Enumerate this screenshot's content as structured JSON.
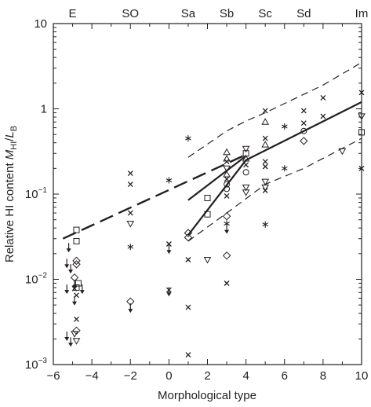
{
  "chart_data": {
    "type": "scatter",
    "xlabel": "Morphological type",
    "ylabel": "Relative HI content M_HI/L_B",
    "ylabel_parts": {
      "main": "Relative HI content ",
      "var": "M",
      "sub1": "HI",
      "sep": "/",
      "var2": "L",
      "sub2": "B"
    },
    "x_range": [
      -6,
      10
    ],
    "y_range": [
      0.001,
      10
    ],
    "y_scale": "log",
    "x_ticks": [
      -6,
      -4,
      -2,
      0,
      2,
      4,
      6,
      8,
      10
    ],
    "x_tick_labels": [
      "−6",
      "−4",
      "−2",
      "0",
      "2",
      "4",
      "6",
      "8",
      "10"
    ],
    "y_ticks": [
      10,
      1,
      0.1,
      0.01,
      0.001
    ],
    "y_tick_labels": [
      {
        "base": "10",
        "exp": ""
      },
      {
        "base": "1",
        "exp": ""
      },
      {
        "base": "10",
        "exp": "−1"
      },
      {
        "base": "10",
        "exp": "−2"
      },
      {
        "base": "10",
        "exp": "−3"
      }
    ],
    "top_types": [
      {
        "label": "E",
        "x": -5
      },
      {
        "label": "SO",
        "x": -2
      },
      {
        "label": "Sa",
        "x": 1
      },
      {
        "label": "Sb",
        "x": 3
      },
      {
        "label": "Sc",
        "x": 5
      },
      {
        "label": "Sd",
        "x": 7
      },
      {
        "label": "Im",
        "x": 10
      }
    ],
    "lines": [
      {
        "style": "solid",
        "points": [
          [
            1,
            0.085
          ],
          [
            4,
            0.28
          ]
        ]
      },
      {
        "style": "solid",
        "points": [
          [
            1,
            0.033
          ],
          [
            4,
            0.25
          ],
          [
            10,
            1.2
          ]
        ]
      },
      {
        "style": "long-dash",
        "points": [
          [
            -5.5,
            0.03
          ],
          [
            4,
            0.29
          ]
        ]
      },
      {
        "style": "short-dash",
        "points": [
          [
            1,
            0.27
          ],
          [
            3,
            0.55
          ],
          [
            4,
            0.72
          ],
          [
            5,
            0.9
          ],
          [
            8,
            1.9
          ],
          [
            10,
            3.5
          ]
        ]
      },
      {
        "style": "short-dash",
        "points": [
          [
            1,
            0.028
          ],
          [
            3,
            0.06
          ],
          [
            5,
            0.13
          ],
          [
            7,
            0.2
          ],
          [
            10,
            0.45
          ]
        ]
      }
    ],
    "points": [
      {
        "x": -4.8,
        "y": 0.0034,
        "m": "x"
      },
      {
        "x": -4.8,
        "y": 0.0065,
        "m": "x"
      },
      {
        "x": -4.9,
        "y": 0.0078,
        "m": "x"
      },
      {
        "x": -4.8,
        "y": 0.038,
        "m": "s"
      },
      {
        "x": -4.8,
        "y": 0.028,
        "m": "s"
      },
      {
        "x": -4.8,
        "y": 0.008,
        "m": "s"
      },
      {
        "x": -4.7,
        "y": 0.009,
        "m": "s"
      },
      {
        "x": -4.8,
        "y": 0.0165,
        "m": "d"
      },
      {
        "x": -4.9,
        "y": 0.0105,
        "m": "d"
      },
      {
        "x": -4.8,
        "y": 0.0025,
        "m": "d"
      },
      {
        "x": -4.8,
        "y": 0.0019,
        "m": "v"
      },
      {
        "x": -4.9,
        "y": 0.0023,
        "m": "v"
      },
      {
        "x": -5.2,
        "y": 0.023,
        "m": "da"
      },
      {
        "x": -5.3,
        "y": 0.015,
        "m": "da"
      },
      {
        "x": -5.1,
        "y": 0.013,
        "m": "da"
      },
      {
        "x": -5.3,
        "y": 0.0075,
        "m": "da"
      },
      {
        "x": -4.9,
        "y": 0.0085,
        "m": "da"
      },
      {
        "x": -4.5,
        "y": 0.0075,
        "m": "da"
      },
      {
        "x": -4.9,
        "y": 0.0055,
        "m": "da"
      },
      {
        "x": -5.3,
        "y": 0.0021,
        "m": "da"
      },
      {
        "x": -5.1,
        "y": 0.0018,
        "m": "da"
      },
      {
        "x": -4.8,
        "y": 0.015,
        "m": "d"
      },
      {
        "x": -2,
        "y": 0.175,
        "m": "x"
      },
      {
        "x": -2,
        "y": 0.13,
        "m": "x"
      },
      {
        "x": -2,
        "y": 0.06,
        "m": "x"
      },
      {
        "x": -2,
        "y": 0.045,
        "m": "v"
      },
      {
        "x": -2,
        "y": 0.024,
        "m": "a"
      },
      {
        "x": -2,
        "y": 0.0055,
        "m": "d"
      },
      {
        "x": -2,
        "y": 0.0045,
        "m": "da"
      },
      {
        "x": 0,
        "y": 0.145,
        "m": "a"
      },
      {
        "x": 0,
        "y": 0.026,
        "m": "x"
      },
      {
        "x": 0,
        "y": 0.022,
        "m": "da"
      },
      {
        "x": 0,
        "y": 0.0075,
        "m": "x"
      },
      {
        "x": 0,
        "y": 0.007,
        "m": "da"
      },
      {
        "x": 1,
        "y": 0.45,
        "m": "a"
      },
      {
        "x": 1,
        "y": 0.035,
        "m": "d"
      },
      {
        "x": 1,
        "y": 0.031,
        "m": "d"
      },
      {
        "x": 1,
        "y": 0.017,
        "m": "x"
      },
      {
        "x": 1,
        "y": 0.0047,
        "m": "x"
      },
      {
        "x": 1,
        "y": 0.0013,
        "m": "x"
      },
      {
        "x": 2,
        "y": 0.09,
        "m": "s"
      },
      {
        "x": 2,
        "y": 0.058,
        "m": "s"
      },
      {
        "x": 2,
        "y": 0.017,
        "m": "v"
      },
      {
        "x": 3,
        "y": 0.31,
        "m": "t"
      },
      {
        "x": 3,
        "y": 0.26,
        "m": "t"
      },
      {
        "x": 3,
        "y": 0.24,
        "m": "x"
      },
      {
        "x": 3,
        "y": 0.2,
        "m": "v"
      },
      {
        "x": 3,
        "y": 0.17,
        "m": "t"
      },
      {
        "x": 3,
        "y": 0.15,
        "m": "x"
      },
      {
        "x": 3,
        "y": 0.13,
        "m": "o"
      },
      {
        "x": 3,
        "y": 0.115,
        "m": "o"
      },
      {
        "x": 3,
        "y": 0.095,
        "m": "x"
      },
      {
        "x": 3,
        "y": 0.055,
        "m": "d"
      },
      {
        "x": 3,
        "y": 0.045,
        "m": "a"
      },
      {
        "x": 3,
        "y": 0.038,
        "m": "da"
      },
      {
        "x": 3,
        "y": 0.019,
        "m": "d"
      },
      {
        "x": 3,
        "y": 0.009,
        "m": "x"
      },
      {
        "x": 4,
        "y": 0.34,
        "m": "v"
      },
      {
        "x": 4,
        "y": 0.3,
        "m": "s"
      },
      {
        "x": 4,
        "y": 0.26,
        "m": "t"
      },
      {
        "x": 4,
        "y": 0.22,
        "m": "x"
      },
      {
        "x": 4,
        "y": 0.18,
        "m": "o"
      },
      {
        "x": 4,
        "y": 0.12,
        "m": "v"
      },
      {
        "x": 4,
        "y": 0.105,
        "m": "v"
      },
      {
        "x": 5,
        "y": 0.95,
        "m": "x"
      },
      {
        "x": 5,
        "y": 0.7,
        "m": "t"
      },
      {
        "x": 5,
        "y": 0.45,
        "m": "x"
      },
      {
        "x": 5,
        "y": 0.38,
        "m": "t"
      },
      {
        "x": 5,
        "y": 0.24,
        "m": "x"
      },
      {
        "x": 5,
        "y": 0.21,
        "m": "x"
      },
      {
        "x": 5,
        "y": 0.14,
        "m": "v"
      },
      {
        "x": 5,
        "y": 0.12,
        "m": "v"
      },
      {
        "x": 5,
        "y": 0.11,
        "m": "x"
      },
      {
        "x": 5,
        "y": 0.044,
        "m": "a"
      },
      {
        "x": 6,
        "y": 0.62,
        "m": "a"
      },
      {
        "x": 6,
        "y": 0.2,
        "m": "a"
      },
      {
        "x": 7,
        "y": 0.95,
        "m": "x"
      },
      {
        "x": 7,
        "y": 0.68,
        "m": "x"
      },
      {
        "x": 7,
        "y": 0.55,
        "m": "o"
      },
      {
        "x": 7,
        "y": 0.42,
        "m": "d"
      },
      {
        "x": 8,
        "y": 1.35,
        "m": "x"
      },
      {
        "x": 8,
        "y": 0.82,
        "m": "x"
      },
      {
        "x": 9,
        "y": 0.32,
        "m": "v"
      },
      {
        "x": 10,
        "y": 1.55,
        "m": "x"
      },
      {
        "x": 10,
        "y": 0.82,
        "m": "v"
      },
      {
        "x": 10,
        "y": 0.53,
        "m": "s"
      },
      {
        "x": 10,
        "y": 0.2,
        "m": "x"
      }
    ]
  }
}
